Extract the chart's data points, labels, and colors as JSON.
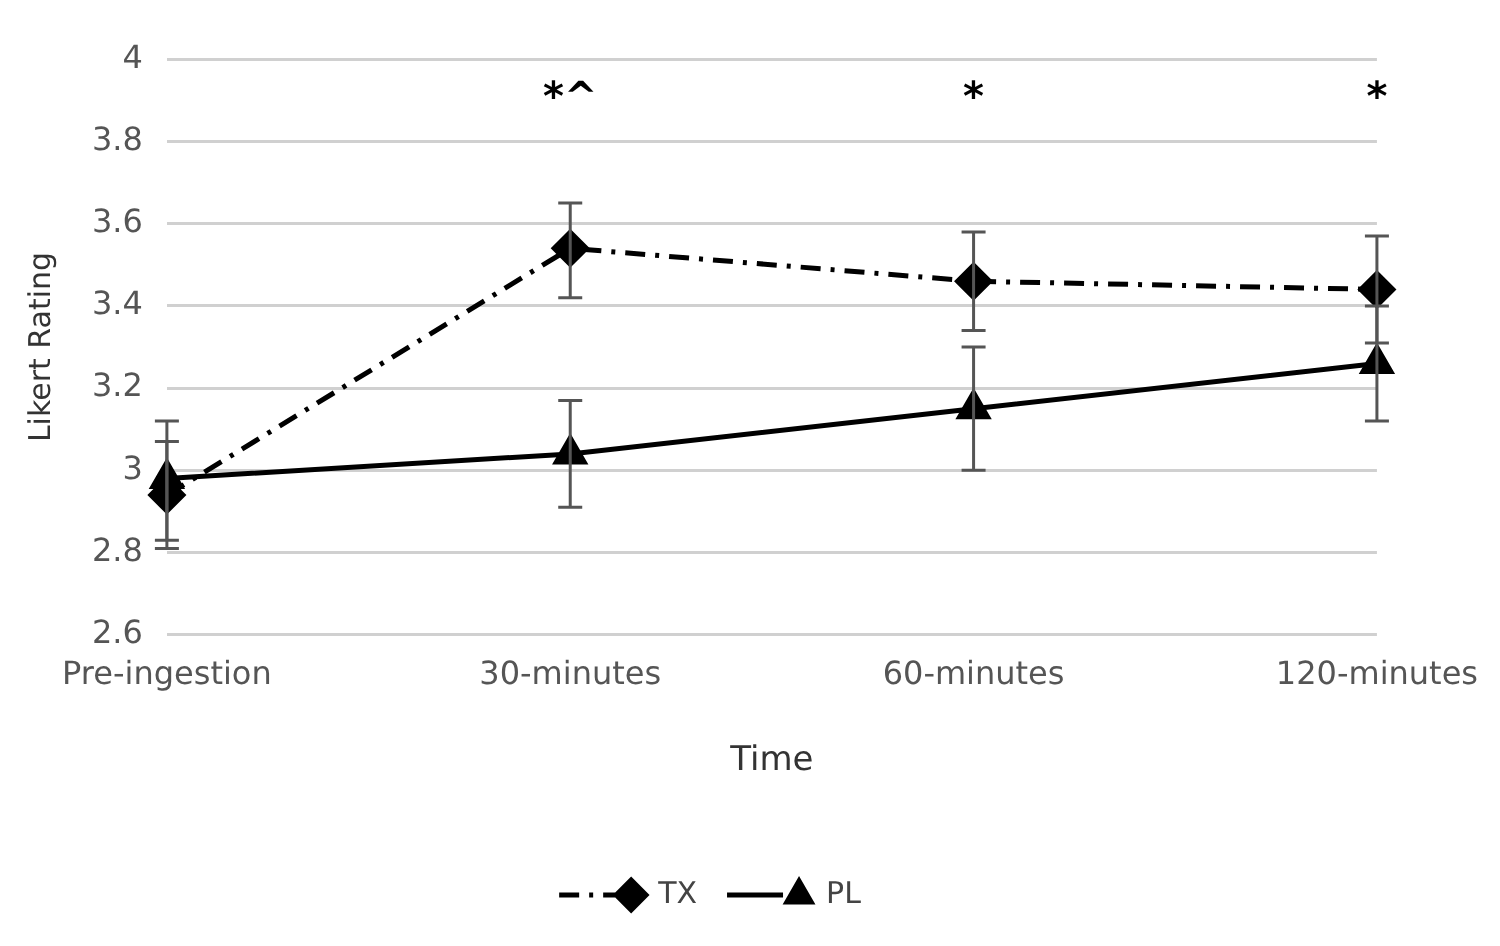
{
  "chart_data": {
    "type": "line",
    "xlabel": "Time",
    "ylabel": "Likert Rating",
    "categories": [
      "Pre-ingestion",
      "30-minutes",
      "60-minutes",
      "120-minutes"
    ],
    "series": [
      {
        "name": "TX",
        "color": "#000000",
        "values": [
          2.94,
          3.54,
          3.46,
          3.44
        ],
        "errors": [
          [
            2.81,
            3.07
          ],
          [
            3.42,
            3.65
          ],
          [
            3.34,
            3.58
          ],
          [
            3.31,
            3.57
          ]
        ],
        "marker": "diamond",
        "line_style": "dashed"
      },
      {
        "name": "PL",
        "color": "#000000",
        "values": [
          2.98,
          3.04,
          3.15,
          3.26
        ],
        "errors": [
          [
            2.83,
            3.12
          ],
          [
            2.91,
            3.17
          ],
          [
            3.0,
            3.3
          ],
          [
            3.12,
            3.4
          ]
        ],
        "marker": "triangle",
        "line_style": "solid"
      }
    ],
    "annotations": [
      "*^",
      "*",
      "*"
    ],
    "ylim": [
      2.6,
      4
    ],
    "yticks": [
      2.6,
      2.8,
      3,
      3.2,
      3.4,
      3.6,
      3.8,
      4
    ],
    "grid": "y",
    "legend": "bottom"
  }
}
